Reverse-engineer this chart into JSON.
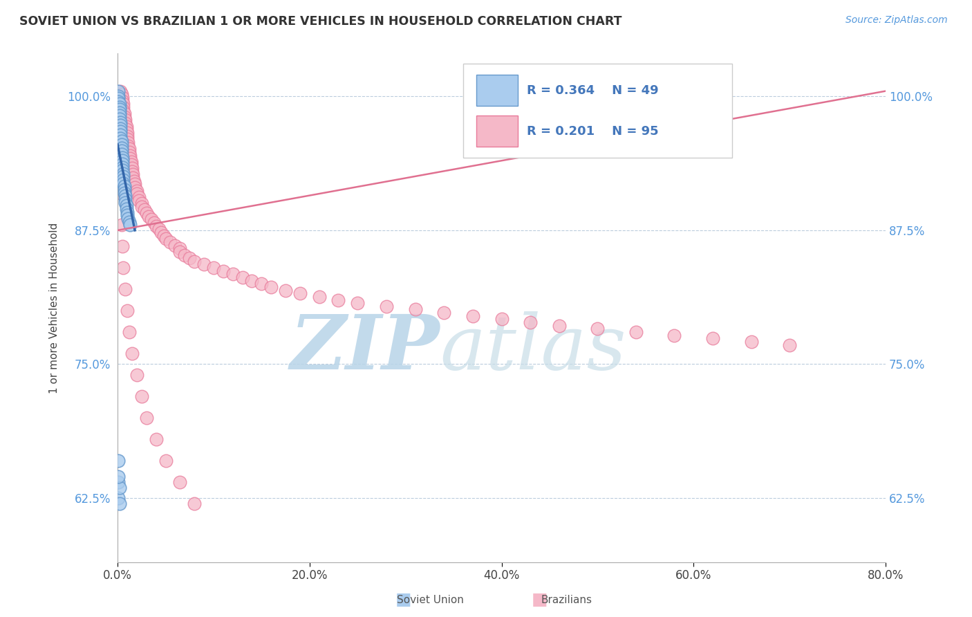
{
  "title": "SOVIET UNION VS BRAZILIAN 1 OR MORE VEHICLES IN HOUSEHOLD CORRELATION CHART",
  "source_text": "Source: ZipAtlas.com",
  "ylabel": "1 or more Vehicles in Household",
  "x_min": 0.0,
  "x_max": 0.8,
  "y_min": 0.565,
  "y_max": 1.04,
  "x_tick_labels": [
    "0.0%",
    "20.0%",
    "40.0%",
    "60.0%",
    "80.0%"
  ],
  "x_tick_vals": [
    0.0,
    0.2,
    0.4,
    0.6,
    0.8
  ],
  "y_tick_labels": [
    "62.5%",
    "75.0%",
    "87.5%",
    "100.0%"
  ],
  "y_tick_vals": [
    0.625,
    0.75,
    0.875,
    1.0
  ],
  "soviet_R": 0.364,
  "soviet_N": 49,
  "brazil_R": 0.201,
  "brazil_N": 95,
  "soviet_color": "#aaccee",
  "soviet_edge_color": "#6699cc",
  "brazil_color": "#f5b8c8",
  "brazil_edge_color": "#e87a9a",
  "soviet_line_color": "#3366aa",
  "brazil_line_color": "#e07090",
  "legend_text_color": "#4477bb",
  "watermark_color": "#cce4f0",
  "watermark_text": "ZIPatlas",
  "soviet_line_x0": 0.0,
  "soviet_line_y0": 0.955,
  "soviet_line_x1": 0.018,
  "soviet_line_y1": 0.875,
  "brazil_line_x0": 0.0,
  "brazil_line_y0": 0.875,
  "brazil_line_x1": 0.8,
  "brazil_line_y1": 1.005,
  "soviet_x": [
    0.001,
    0.001,
    0.001,
    0.001,
    0.002,
    0.002,
    0.002,
    0.002,
    0.002,
    0.002,
    0.003,
    0.003,
    0.003,
    0.003,
    0.003,
    0.003,
    0.004,
    0.004,
    0.004,
    0.004,
    0.004,
    0.005,
    0.005,
    0.005,
    0.005,
    0.005,
    0.006,
    0.006,
    0.006,
    0.006,
    0.007,
    0.007,
    0.007,
    0.008,
    0.008,
    0.008,
    0.009,
    0.009,
    0.01,
    0.01,
    0.011,
    0.012,
    0.013,
    0.001,
    0.001,
    0.002,
    0.002,
    0.001,
    0.001
  ],
  "soviet_y": [
    1.005,
    1.0,
    0.998,
    0.995,
    0.993,
    0.99,
    0.988,
    0.985,
    0.982,
    0.979,
    0.976,
    0.973,
    0.97,
    0.967,
    0.964,
    0.961,
    0.958,
    0.955,
    0.952,
    0.949,
    0.946,
    0.943,
    0.94,
    0.937,
    0.934,
    0.931,
    0.928,
    0.925,
    0.922,
    0.919,
    0.916,
    0.913,
    0.91,
    0.907,
    0.904,
    0.901,
    0.898,
    0.895,
    0.892,
    0.889,
    0.886,
    0.883,
    0.88,
    0.64,
    0.625,
    0.635,
    0.62,
    0.66,
    0.645
  ],
  "brazil_x": [
    0.003,
    0.004,
    0.005,
    0.005,
    0.006,
    0.006,
    0.006,
    0.007,
    0.007,
    0.008,
    0.008,
    0.009,
    0.009,
    0.01,
    0.01,
    0.01,
    0.011,
    0.011,
    0.012,
    0.012,
    0.013,
    0.013,
    0.014,
    0.014,
    0.015,
    0.015,
    0.016,
    0.016,
    0.017,
    0.018,
    0.018,
    0.02,
    0.02,
    0.022,
    0.022,
    0.025,
    0.025,
    0.028,
    0.03,
    0.032,
    0.035,
    0.038,
    0.04,
    0.043,
    0.045,
    0.048,
    0.05,
    0.055,
    0.06,
    0.065,
    0.065,
    0.07,
    0.075,
    0.08,
    0.09,
    0.1,
    0.11,
    0.12,
    0.13,
    0.14,
    0.15,
    0.16,
    0.175,
    0.19,
    0.21,
    0.23,
    0.25,
    0.28,
    0.31,
    0.34,
    0.37,
    0.4,
    0.43,
    0.46,
    0.5,
    0.54,
    0.58,
    0.62,
    0.66,
    0.7,
    0.003,
    0.004,
    0.005,
    0.006,
    0.008,
    0.01,
    0.012,
    0.015,
    0.02,
    0.025,
    0.03,
    0.04,
    0.05,
    0.065,
    0.08
  ],
  "brazil_y": [
    1.005,
    1.002,
    0.999,
    0.996,
    0.993,
    0.99,
    0.987,
    0.984,
    0.981,
    0.978,
    0.975,
    0.972,
    0.969,
    0.966,
    0.963,
    0.96,
    0.957,
    0.954,
    0.951,
    0.948,
    0.945,
    0.942,
    0.939,
    0.936,
    0.933,
    0.93,
    0.927,
    0.924,
    0.921,
    0.918,
    0.915,
    0.912,
    0.909,
    0.906,
    0.903,
    0.9,
    0.897,
    0.894,
    0.891,
    0.888,
    0.885,
    0.882,
    0.879,
    0.876,
    0.873,
    0.87,
    0.867,
    0.864,
    0.861,
    0.858,
    0.855,
    0.852,
    0.849,
    0.846,
    0.843,
    0.84,
    0.837,
    0.834,
    0.831,
    0.828,
    0.825,
    0.822,
    0.819,
    0.816,
    0.813,
    0.81,
    0.807,
    0.804,
    0.801,
    0.798,
    0.795,
    0.792,
    0.789,
    0.786,
    0.783,
    0.78,
    0.777,
    0.774,
    0.771,
    0.768,
    0.91,
    0.88,
    0.86,
    0.84,
    0.82,
    0.8,
    0.78,
    0.76,
    0.74,
    0.72,
    0.7,
    0.68,
    0.66,
    0.64,
    0.62
  ]
}
